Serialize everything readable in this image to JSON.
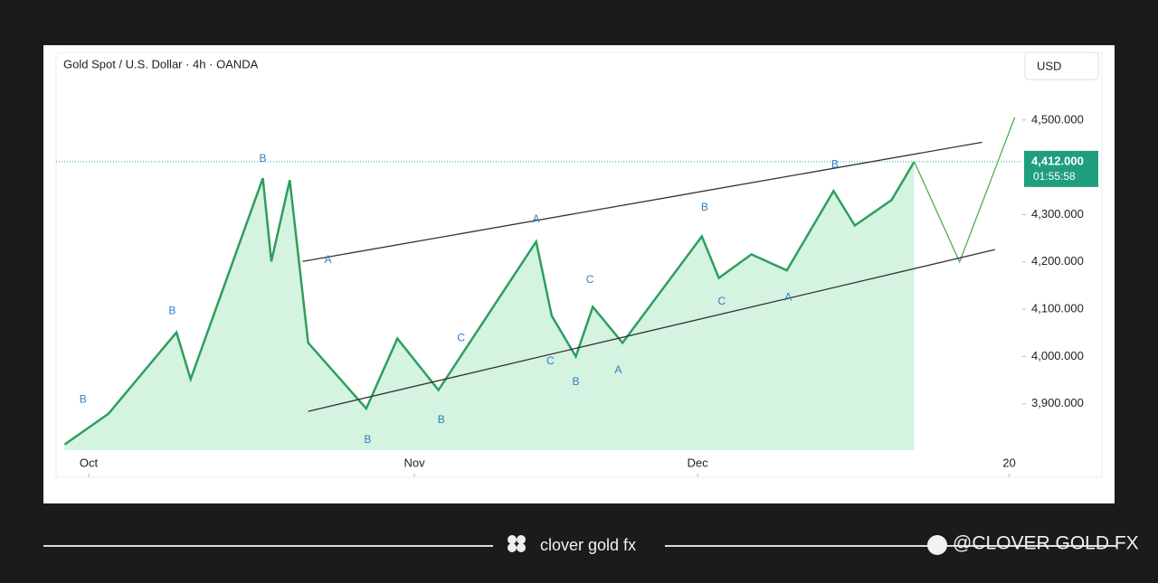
{
  "header": {
    "title": "Gold Spot / U.S. Dollar · 4h · OANDA",
    "currency": "USD"
  },
  "chart_data": {
    "type": "line",
    "xlim": [
      -2.3,
      65.8
    ],
    "xticks": [
      {
        "value": 0,
        "label": "Oct"
      },
      {
        "value": 23,
        "label": "Nov"
      },
      {
        "value": 43,
        "label": "Dec"
      },
      {
        "value": 65,
        "label": "20"
      }
    ],
    "ylim": [
      3802,
      4643
    ],
    "yticks": [
      {
        "value": 3900,
        "label": "3,900.000"
      },
      {
        "value": 4000,
        "label": "4,000.000"
      },
      {
        "value": 4100,
        "label": "4,100.000"
      },
      {
        "value": 4200,
        "label": "4,200.000"
      },
      {
        "value": 4300,
        "label": "4,300.000"
      },
      {
        "value": 4500,
        "label": "4,500.000"
      }
    ],
    "series": [
      {
        "color": "#2e9e5e",
        "x": [
          -1.7,
          1.4,
          6.2,
          7.2,
          12.3,
          12.9,
          14.2,
          15.5,
          19.6,
          21.8,
          24.7,
          31.6,
          32.7,
          34.4,
          35.6,
          37.7,
          43.3,
          44.5,
          46.8,
          49.3,
          52.6,
          54.1,
          56.7,
          58.3
        ],
        "values": [
          3814,
          3879,
          4051,
          3952,
          4377,
          4201,
          4373,
          4029,
          3890,
          4038,
          3929,
          4243,
          4086,
          4000,
          4105,
          4029,
          4254,
          4166,
          4216,
          4182,
          4350,
          4277,
          4331,
          4412
        ]
      },
      {
        "color": "#4caf50",
        "x": [
          58.3,
          61.5,
          65.4
        ],
        "values": [
          4412,
          4200,
          4506
        ]
      },
      {
        "color": "#333333",
        "x": [
          15.1,
          63.1
        ],
        "values": [
          4201,
          4453
        ]
      },
      {
        "color": "#333333",
        "x": [
          15.5,
          64.0
        ],
        "values": [
          3884,
          4226
        ]
      }
    ],
    "last_price": {
      "value": 4412,
      "label": "4,412.000"
    },
    "countdown": "01:55:58",
    "annotations": [
      {
        "text": "B",
        "x": 12.3,
        "y": 4418
      },
      {
        "text": "B",
        "x": 5.9,
        "y": 4096
      },
      {
        "text": "B",
        "x": -0.4,
        "y": 3908
      },
      {
        "text": "A",
        "x": 16.9,
        "y": 4204
      },
      {
        "text": "B",
        "x": 19.7,
        "y": 3823
      },
      {
        "text": "B",
        "x": 24.9,
        "y": 3865
      },
      {
        "text": "C",
        "x": 26.3,
        "y": 4038
      },
      {
        "text": "A",
        "x": 31.6,
        "y": 4290
      },
      {
        "text": "C",
        "x": 35.4,
        "y": 4162
      },
      {
        "text": "C",
        "x": 32.6,
        "y": 3990
      },
      {
        "text": "B",
        "x": 34.4,
        "y": 3946
      },
      {
        "text": "A",
        "x": 37.4,
        "y": 3971
      },
      {
        "text": "B",
        "x": 43.5,
        "y": 4315
      },
      {
        "text": "C",
        "x": 44.7,
        "y": 4116
      },
      {
        "text": "A",
        "x": 49.4,
        "y": 4124
      },
      {
        "text": "B",
        "x": 52.7,
        "y": 4405
      }
    ]
  },
  "footer": {
    "brand": "clover gold fx",
    "handle": "@CLOVER GOLD FX"
  }
}
